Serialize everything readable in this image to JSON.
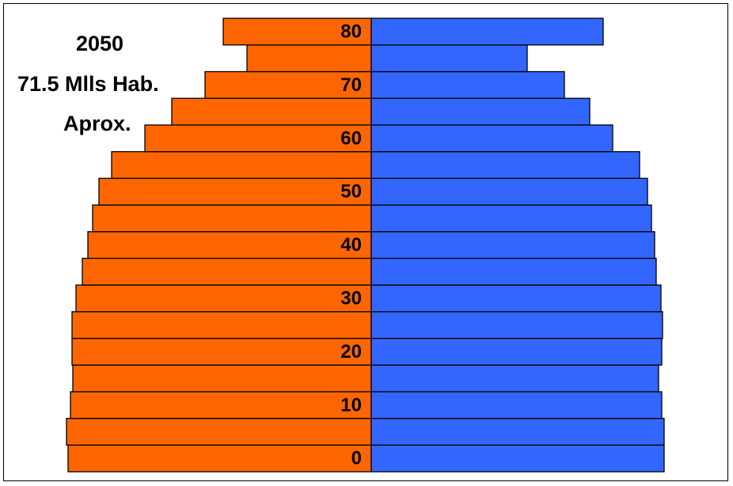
{
  "chart_data": {
    "type": "bar",
    "orientation": "horizontal-population-pyramid",
    "categories": [
      "0",
      "5",
      "10",
      "15",
      "20",
      "25",
      "30",
      "35",
      "40",
      "45",
      "50",
      "55",
      "60",
      "65",
      "70",
      "75",
      "80"
    ],
    "tick_labels": [
      "0",
      "10",
      "20",
      "30",
      "40",
      "50",
      "60",
      "70",
      "80"
    ],
    "series": [
      {
        "side": "left",
        "color": "#ff6600",
        "values": [
          3.83,
          3.85,
          3.8,
          3.77,
          3.78,
          3.78,
          3.73,
          3.65,
          3.58,
          3.52,
          3.44,
          3.28,
          2.86,
          2.52,
          2.1,
          1.57,
          1.87
        ]
      },
      {
        "side": "right",
        "color": "#3366ff",
        "values": [
          3.7,
          3.7,
          3.67,
          3.63,
          3.67,
          3.68,
          3.66,
          3.6,
          3.58,
          3.54,
          3.49,
          3.39,
          3.05,
          2.76,
          2.44,
          1.97,
          2.93
        ]
      }
    ],
    "xlim": [
      -4,
      4
    ],
    "grid": false,
    "legend": "none"
  },
  "annotations": {
    "year": "2050",
    "population": "71.5  Mlls Hab.",
    "approx": "Aprox."
  }
}
